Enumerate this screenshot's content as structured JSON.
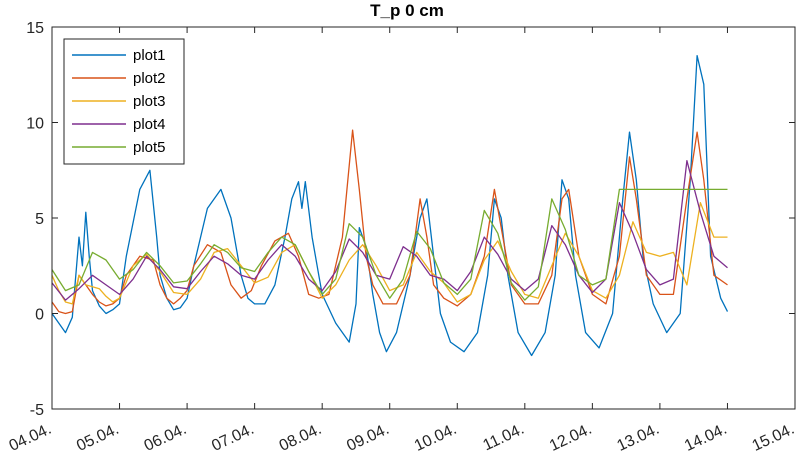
{
  "chart_data": {
    "type": "line",
    "title": "T_p 0 cm",
    "xlabel": "",
    "ylabel": "",
    "xlim": [
      0,
      11
    ],
    "ylim": [
      -5,
      15
    ],
    "yticks": [
      -5,
      0,
      5,
      10,
      15
    ],
    "xtick_labels": [
      "04.04.",
      "05.04.",
      "06.04.",
      "07.04.",
      "08.04.",
      "09.04.",
      "10.04.",
      "11.04.",
      "12.04.",
      "13.04.",
      "14.04.",
      "15.04."
    ],
    "legend_position": "top-left",
    "series": [
      {
        "name": "plot1",
        "color": "#0072BD",
        "x": [
          0,
          0.1,
          0.2,
          0.3,
          0.4,
          0.45,
          0.5,
          0.55,
          0.6,
          0.7,
          0.8,
          0.9,
          1.0,
          1.1,
          1.3,
          1.45,
          1.55,
          1.6,
          1.7,
          1.8,
          1.9,
          2.0,
          2.1,
          2.3,
          2.5,
          2.65,
          2.8,
          2.9,
          3.0,
          3.15,
          3.3,
          3.45,
          3.55,
          3.65,
          3.7,
          3.75,
          3.85,
          3.95,
          4.0,
          4.2,
          4.4,
          4.5,
          4.55,
          4.65,
          4.75,
          4.85,
          4.95,
          5.1,
          5.3,
          5.45,
          5.55,
          5.65,
          5.75,
          5.9,
          6.1,
          6.3,
          6.45,
          6.55,
          6.65,
          6.75,
          6.9,
          7.1,
          7.3,
          7.45,
          7.55,
          7.65,
          7.75,
          7.9,
          8.1,
          8.3,
          8.45,
          8.55,
          8.65,
          8.75,
          8.9,
          9.1,
          9.3,
          9.45,
          9.55,
          9.65,
          9.75,
          9.9,
          10.0
        ],
        "y": [
          0,
          -0.5,
          -1,
          -0.2,
          4,
          2.5,
          5.3,
          3,
          1.2,
          0.4,
          0,
          0.2,
          0.5,
          3,
          6.5,
          7.5,
          4,
          2,
          0.8,
          0.2,
          0.3,
          0.8,
          2.5,
          5.5,
          6.5,
          5,
          2,
          0.8,
          0.5,
          0.5,
          1.5,
          4,
          6,
          6.9,
          5.5,
          6.9,
          4,
          2,
          1,
          -0.5,
          -1.5,
          0.5,
          4.5,
          3.5,
          1,
          -1,
          -2,
          -1,
          2,
          5,
          6,
          3,
          0,
          -1.5,
          -2,
          -1,
          2,
          6,
          5,
          2,
          -1,
          -2.2,
          -1,
          2,
          7,
          6,
          2,
          -1,
          -1.8,
          0,
          6,
          9.5,
          7,
          3,
          0.5,
          -1,
          0,
          7,
          13.5,
          12,
          3,
          0.8,
          0.1
        ]
      },
      {
        "name": "plot2",
        "color": "#D95319",
        "x": [
          0,
          0.1,
          0.2,
          0.3,
          0.4,
          0.5,
          0.6,
          0.7,
          0.8,
          0.9,
          1.0,
          1.1,
          1.3,
          1.5,
          1.6,
          1.7,
          1.8,
          1.9,
          2.0,
          2.1,
          2.3,
          2.5,
          2.65,
          2.8,
          2.95,
          3.1,
          3.3,
          3.5,
          3.65,
          3.8,
          3.95,
          4.1,
          4.3,
          4.45,
          4.55,
          4.65,
          4.75,
          4.9,
          5.1,
          5.3,
          5.45,
          5.55,
          5.65,
          5.8,
          6.0,
          6.2,
          6.4,
          6.55,
          6.65,
          6.8,
          7.0,
          7.2,
          7.4,
          7.55,
          7.65,
          7.8,
          8.0,
          8.2,
          8.4,
          8.55,
          8.65,
          8.8,
          9.0,
          9.2,
          9.4,
          9.55,
          9.65,
          9.8,
          10.0
        ],
        "y": [
          0.6,
          0.1,
          0,
          0.1,
          2,
          1.5,
          1,
          0.6,
          0.4,
          0.5,
          0.8,
          2,
          3,
          2.8,
          1.5,
          0.8,
          0.5,
          0.8,
          1.2,
          2.5,
          3.6,
          3.2,
          1.5,
          0.8,
          1.2,
          2.5,
          3.8,
          4.2,
          3,
          1,
          0.8,
          1,
          4,
          9.6,
          6.5,
          3,
          1.5,
          0.5,
          0.5,
          2,
          6,
          4,
          1.5,
          0.8,
          0.4,
          1,
          3,
          6.5,
          4.5,
          1.5,
          0.5,
          0.5,
          2,
          6,
          6.5,
          3,
          1,
          0.5,
          3,
          8.2,
          6,
          2,
          1,
          1,
          6,
          9.5,
          7,
          2,
          1.5
        ]
      },
      {
        "name": "plot3",
        "color": "#EDB120",
        "x": [
          0,
          0.1,
          0.2,
          0.3,
          0.4,
          0.5,
          0.6,
          0.7,
          0.8,
          0.9,
          1.0,
          1.2,
          1.4,
          1.6,
          1.8,
          2.0,
          2.2,
          2.4,
          2.6,
          2.8,
          3.0,
          3.2,
          3.4,
          3.6,
          3.8,
          4.0,
          4.2,
          4.4,
          4.6,
          4.8,
          5.0,
          5.2,
          5.4,
          5.6,
          5.8,
          6.0,
          6.2,
          6.4,
          6.6,
          6.8,
          7.0,
          7.2,
          7.4,
          7.6,
          7.8,
          8.0,
          8.2,
          8.4,
          8.6,
          8.8,
          9.0,
          9.2,
          9.4,
          9.6,
          9.8,
          10.0
        ],
        "y": [
          2,
          1.2,
          0.6,
          0.5,
          2,
          1.5,
          1.4,
          1.3,
          0.9,
          0.6,
          0.8,
          2.5,
          3.1,
          2.2,
          1.1,
          1,
          1.8,
          3.2,
          3.4,
          2.5,
          1.6,
          1.9,
          3.2,
          3.6,
          2.2,
          0.8,
          1.5,
          2.8,
          3.6,
          2.5,
          1.2,
          1.5,
          3.2,
          2.2,
          1.6,
          0.6,
          1,
          2.8,
          3.8,
          2.2,
          1,
          0.8,
          2.5,
          4.2,
          3,
          1.2,
          0.8,
          2,
          4.8,
          3.2,
          3,
          3.2,
          1.5,
          5.8,
          4,
          4
        ]
      },
      {
        "name": "plot4",
        "color": "#7E2F8E",
        "x": [
          0,
          0.2,
          0.4,
          0.6,
          0.8,
          1.0,
          1.2,
          1.4,
          1.6,
          1.8,
          2.0,
          2.2,
          2.4,
          2.6,
          2.8,
          3.0,
          3.2,
          3.4,
          3.6,
          3.8,
          4.0,
          4.2,
          4.4,
          4.6,
          4.8,
          5.0,
          5.2,
          5.4,
          5.6,
          5.8,
          6.0,
          6.2,
          6.4,
          6.6,
          6.8,
          7.0,
          7.2,
          7.4,
          7.6,
          7.8,
          8.0,
          8.2,
          8.4,
          8.6,
          8.8,
          9.0,
          9.2,
          9.4,
          9.6,
          9.8,
          10.0
        ],
        "y": [
          1.6,
          0.7,
          1.3,
          2,
          1.5,
          1,
          1.8,
          3,
          2.3,
          1.4,
          1.3,
          2.2,
          3,
          2.6,
          2,
          1.8,
          2.8,
          3.6,
          3,
          1.8,
          1.2,
          2.2,
          3.9,
          3.2,
          2,
          1.8,
          3.5,
          3,
          2,
          1.8,
          1.2,
          2.2,
          4,
          3.1,
          1.8,
          1.2,
          1.8,
          4.6,
          3.6,
          2,
          1.1,
          1.8,
          5.8,
          4.2,
          2.3,
          1.5,
          1.8,
          8,
          5.3,
          3,
          2.4
        ]
      },
      {
        "name": "plot5",
        "color": "#77AC30",
        "x": [
          0,
          0.2,
          0.4,
          0.6,
          0.8,
          1.0,
          1.2,
          1.4,
          1.6,
          1.8,
          2.0,
          2.2,
          2.4,
          2.6,
          2.8,
          3.0,
          3.2,
          3.4,
          3.6,
          3.8,
          4.0,
          4.2,
          4.4,
          4.6,
          4.8,
          5.0,
          5.2,
          5.4,
          5.6,
          5.8,
          6.0,
          6.2,
          6.4,
          6.6,
          6.8,
          7.0,
          7.2,
          7.4,
          7.6,
          7.8,
          8.0,
          8.2,
          8.4,
          8.5,
          8.55,
          10.0
        ],
        "y": [
          2.3,
          1.2,
          1.5,
          3.2,
          2.8,
          1.8,
          2.3,
          3.2,
          2.5,
          1.6,
          1.7,
          2.6,
          3.6,
          3.2,
          2.4,
          2.2,
          3.2,
          4,
          3.6,
          2.2,
          1,
          1.8,
          4.7,
          4,
          2,
          0.8,
          1.8,
          4.3,
          3.4,
          1.6,
          1,
          1.8,
          5.4,
          4.2,
          1.6,
          0.7,
          1.4,
          6,
          4.4,
          2,
          1.5,
          1.8,
          6.5,
          6.5,
          6.5,
          6.5
        ]
      }
    ]
  }
}
